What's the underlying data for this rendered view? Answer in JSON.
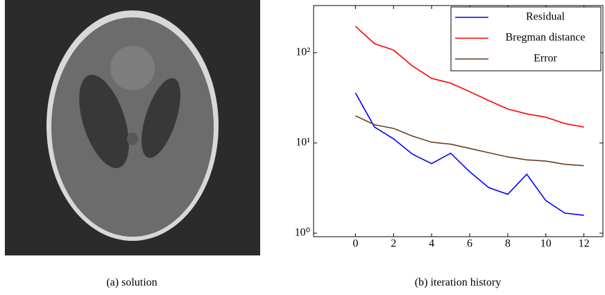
{
  "chart_data": {
    "type": "line",
    "x": [
      0,
      1,
      2,
      3,
      4,
      5,
      6,
      7,
      8,
      9,
      10,
      11,
      12
    ],
    "series": [
      {
        "name": "Residual",
        "color": "#0000ff",
        "values": [
          35.8,
          15,
          11.1,
          7.5,
          5.9,
          7.7,
          4.8,
          3.2,
          2.7,
          4.5,
          2.3,
          1.67,
          1.58
        ]
      },
      {
        "name": "Bregman distance",
        "color": "#ff0000",
        "values": [
          196,
          126,
          107,
          71,
          52,
          46,
          37,
          29.5,
          23.8,
          21,
          19.3,
          16.4,
          15
        ]
      },
      {
        "name": "Error",
        "color": "#6b3d1f",
        "values": [
          20,
          15.9,
          14.5,
          11.9,
          10.2,
          9.7,
          8.7,
          7.8,
          7.0,
          6.5,
          6.3,
          5.8,
          5.6
        ]
      }
    ],
    "xlim": [
      -2.2,
      13
    ],
    "xticks": [
      0,
      2,
      4,
      6,
      8,
      10,
      12
    ],
    "ylim": [
      0.915,
      333
    ],
    "log_y": true,
    "yticks": [
      {
        "value": 1,
        "label": "10⁰"
      },
      {
        "value": 10,
        "label": "10¹"
      },
      {
        "value": 100,
        "label": "10²"
      }
    ],
    "legend": "upper right"
  },
  "captions": [
    "(a) solution",
    "(b) iteration history"
  ]
}
